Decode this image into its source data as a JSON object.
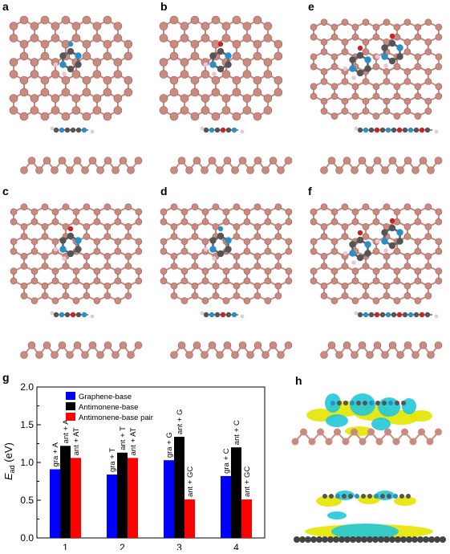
{
  "panels": {
    "a": "a",
    "b": "b",
    "c": "c",
    "d": "d",
    "e": "e",
    "f": "f",
    "g": "g",
    "h": "h"
  },
  "colors": {
    "antimony": "#c98a80",
    "carbon": "#555555",
    "nitrogen": "#2a8fc7",
    "oxygen": "#cc2222",
    "hydrogen": "#e6c8d6",
    "charge_yellow": "#e6e600",
    "charge_cyan": "#22c8d8",
    "graphene": "#444444"
  },
  "chart_data": {
    "type": "bar",
    "ylabel_main": "E",
    "ylabel_sub": "ad",
    "ylabel_unit": " (eV)",
    "ylim": [
      0.0,
      2.0
    ],
    "yticks": [
      "0.0",
      "0.5",
      "1.0",
      "1.5",
      "2.0"
    ],
    "categories": [
      "1",
      "2",
      "3",
      "4"
    ],
    "series": [
      {
        "name": "Graphene-base",
        "color": "#0000ff",
        "values": [
          0.91,
          0.84,
          1.03,
          0.82
        ]
      },
      {
        "name": "Antimonene-base",
        "color": "#000000",
        "values": [
          1.22,
          1.13,
          1.34,
          1.2
        ]
      },
      {
        "name": "Antimonene-base pair",
        "color": "#ff0000",
        "values": [
          1.06,
          1.06,
          0.51,
          0.51
        ]
      }
    ],
    "bar_labels": [
      [
        "gra + A",
        "ant + A",
        "ant + AT"
      ],
      [
        "gra + T",
        "ant + T",
        "ant + AT"
      ],
      [
        "gra + G",
        "ant + G",
        "ant + GC"
      ],
      [
        "gra + C",
        "ant + C",
        "ant + GC"
      ]
    ],
    "legend_position": "top-left"
  }
}
